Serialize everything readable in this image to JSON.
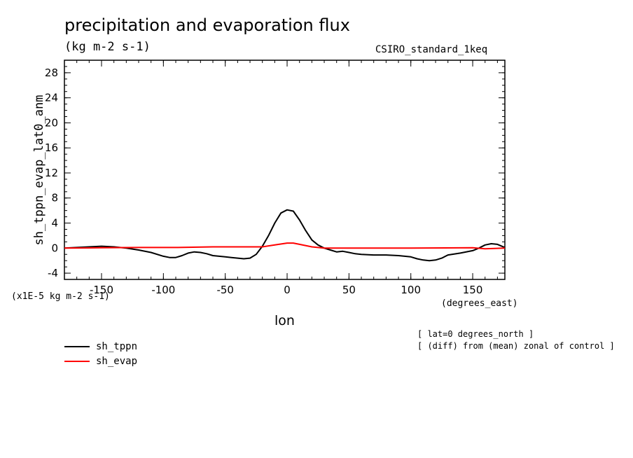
{
  "header": {
    "title": "precipitation and evaporation flux",
    "units": "(kg m-2 s-1)",
    "model": "CSIRO_standard_1keq"
  },
  "annotations": {
    "y_scale": "(x1E-5 kg m-2 s-1)",
    "x_units": "(degrees_east)",
    "note1": "[ lat=0 degrees_north ]",
    "note2": "[ (diff) from (mean) zonal of control ]"
  },
  "chart_data": {
    "type": "line",
    "title": "precipitation and evaporation flux",
    "subtitle": "(kg m-2 s-1)",
    "xlabel": "lon",
    "ylabel": "sh_tppn_evap_lat0_anm",
    "xlim": [
      -180,
      176
    ],
    "ylim": [
      -5,
      30
    ],
    "xticks": [
      -150,
      -100,
      -50,
      0,
      50,
      100,
      150
    ],
    "yticks": [
      -4,
      0,
      4,
      8,
      12,
      16,
      20,
      24,
      28
    ],
    "grid": false,
    "legend_position": "bottom-left",
    "series": [
      {
        "name": "sh_tppn",
        "color": "#000000",
        "x": [
          -180,
          -170,
          -160,
          -150,
          -140,
          -130,
          -120,
          -110,
          -100,
          -95,
          -90,
          -85,
          -80,
          -75,
          -70,
          -65,
          -60,
          -55,
          -50,
          -45,
          -40,
          -35,
          -30,
          -25,
          -20,
          -15,
          -10,
          -5,
          0,
          5,
          10,
          15,
          20,
          25,
          30,
          35,
          40,
          45,
          50,
          55,
          60,
          70,
          80,
          90,
          100,
          105,
          110,
          115,
          120,
          125,
          130,
          140,
          150,
          155,
          160,
          165,
          170,
          176
        ],
        "y": [
          0.0,
          0.1,
          0.2,
          0.3,
          0.2,
          0.0,
          -0.3,
          -0.7,
          -1.3,
          -1.5,
          -1.5,
          -1.2,
          -0.8,
          -0.6,
          -0.7,
          -0.9,
          -1.2,
          -1.3,
          -1.4,
          -1.5,
          -1.6,
          -1.7,
          -1.6,
          -1.0,
          0.3,
          2.0,
          4.0,
          5.6,
          6.1,
          5.9,
          4.5,
          2.8,
          1.3,
          0.5,
          0.0,
          -0.3,
          -0.6,
          -0.5,
          -0.7,
          -0.9,
          -1.0,
          -1.1,
          -1.1,
          -1.2,
          -1.4,
          -1.7,
          -1.9,
          -2.0,
          -1.9,
          -1.6,
          -1.1,
          -0.8,
          -0.4,
          0.0,
          0.5,
          0.7,
          0.6,
          0.1
        ]
      },
      {
        "name": "sh_evap",
        "color": "#ff0000",
        "x": [
          -180,
          -150,
          -120,
          -90,
          -60,
          -40,
          -20,
          -10,
          0,
          5,
          10,
          20,
          30,
          60,
          100,
          150,
          160,
          176
        ],
        "y": [
          0.0,
          0.05,
          0.1,
          0.1,
          0.2,
          0.2,
          0.2,
          0.5,
          0.8,
          0.8,
          0.6,
          0.2,
          0.0,
          0.0,
          0.0,
          0.05,
          -0.1,
          0.0
        ]
      }
    ]
  }
}
